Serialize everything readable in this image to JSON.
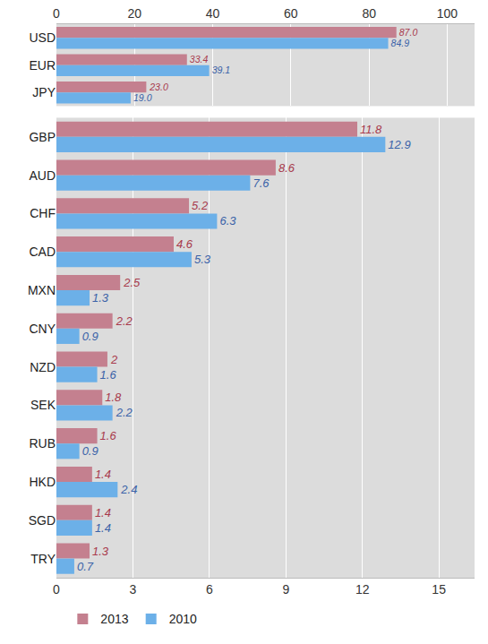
{
  "chart_data": [
    {
      "type": "bar",
      "orientation": "horizontal",
      "data_labels": true,
      "grid": true,
      "categories": [
        "USD",
        "EUR",
        "JPY"
      ],
      "xlim": [
        0,
        107
      ],
      "xticks": [
        0,
        20,
        40,
        60,
        80,
        100
      ],
      "series": [
        {
          "name": "2013",
          "color": "#c4808f",
          "values": [
            87.0,
            33.4,
            23.0
          ],
          "value_labels": [
            "87.0",
            "33.4",
            "23.0"
          ]
        },
        {
          "name": "2010",
          "color": "#6cb0e8",
          "values": [
            84.9,
            39.1,
            19.0
          ],
          "value_labels": [
            "84.9",
            "39.1",
            "19.0"
          ]
        }
      ]
    },
    {
      "type": "bar",
      "orientation": "horizontal",
      "data_labels": true,
      "grid": true,
      "legend": "bottom",
      "categories": [
        "GBP",
        "AUD",
        "CHF",
        "CAD",
        "MXN",
        "CNY",
        "NZD",
        "SEK",
        "RUB",
        "HKD",
        "SGD",
        "TRY"
      ],
      "xlim": [
        0,
        16.4
      ],
      "xticks": [
        0,
        3,
        6,
        9,
        12,
        15
      ],
      "series": [
        {
          "name": "2013",
          "color": "#c4808f",
          "values": [
            11.8,
            8.6,
            5.2,
            4.6,
            2.5,
            2.2,
            2,
            1.8,
            1.6,
            1.4,
            1.4,
            1.3
          ]
        },
        {
          "name": "2010",
          "color": "#6cb0e8",
          "values": [
            12.9,
            7.6,
            6.3,
            5.3,
            1.3,
            0.9,
            1.6,
            2.2,
            0.9,
            2.4,
            1.4,
            0.7
          ]
        }
      ]
    }
  ]
}
